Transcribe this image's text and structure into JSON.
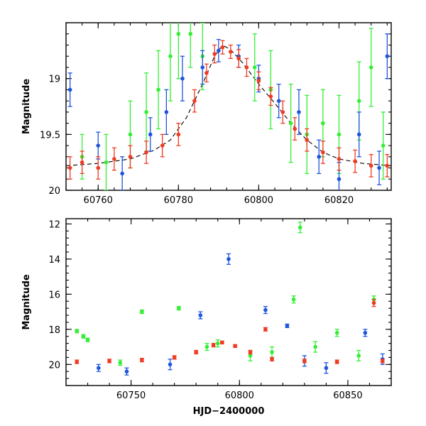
{
  "colors": {
    "green": "#33ee33",
    "blue": "#1f55dd",
    "red": "#f03a22",
    "model": "#000000"
  },
  "chart_data": [
    {
      "type": "scatter",
      "panel": "top",
      "xlabel": "",
      "ylabel": "Magnitude",
      "xlim": [
        60752,
        60833
      ],
      "ylim": [
        20.0,
        18.5
      ],
      "y_inverted": true,
      "x_ticks": [
        60760,
        60780,
        60800,
        60820
      ],
      "x_tick_labels": [
        "60760",
        "60780",
        "60800",
        "60820"
      ],
      "y_ticks": [
        19.0,
        19.5,
        20.0
      ],
      "y_tick_labels": [
        "19",
        "19.5",
        "20"
      ],
      "grid": false,
      "model_curve": {
        "x": [
          60752,
          60760,
          60768,
          60774,
          60778,
          60782,
          60786,
          60789,
          60791,
          60793,
          60796,
          60800,
          60804,
          60808,
          60812,
          60816,
          60820,
          60826,
          60833
        ],
        "y": [
          19.78,
          19.76,
          19.72,
          19.64,
          19.55,
          19.35,
          19.05,
          18.8,
          18.7,
          18.74,
          18.86,
          19.05,
          19.22,
          19.4,
          19.55,
          19.66,
          19.72,
          19.76,
          19.78
        ]
      },
      "series": [
        {
          "color": "green",
          "points": [
            [
              60756,
              19.7,
              0.2
            ],
            [
              60762,
              19.75,
              0.25
            ],
            [
              60768,
              19.5,
              0.3
            ],
            [
              60772,
              19.3,
              0.35
            ],
            [
              60775,
              19.1,
              0.35
            ],
            [
              60778,
              18.8,
              0.4
            ],
            [
              60780,
              18.6,
              0.4
            ],
            [
              60783,
              18.6,
              0.3
            ],
            [
              60786,
              18.8,
              0.3
            ],
            [
              60799,
              18.9,
              0.3
            ],
            [
              60803,
              19.1,
              0.35
            ],
            [
              60808,
              19.4,
              0.35
            ],
            [
              60812,
              19.5,
              0.35
            ],
            [
              60816,
              19.4,
              0.3
            ],
            [
              60820,
              19.5,
              0.35
            ],
            [
              60825,
              19.2,
              0.35
            ],
            [
              60828,
              18.9,
              0.35
            ],
            [
              60831,
              19.6,
              0.3
            ]
          ]
        },
        {
          "color": "blue",
          "points": [
            [
              60753,
              19.1,
              0.15
            ],
            [
              60760,
              19.6,
              0.12
            ],
            [
              60766,
              19.85,
              0.15
            ],
            [
              60773,
              19.5,
              0.15
            ],
            [
              60777,
              19.3,
              0.2
            ],
            [
              60781,
              19.0,
              0.2
            ],
            [
              60786,
              18.9,
              0.15
            ],
            [
              60790,
              18.75,
              0.1
            ],
            [
              60795,
              18.8,
              0.1
            ],
            [
              60800,
              19.0,
              0.12
            ],
            [
              60805,
              19.2,
              0.15
            ],
            [
              60810,
              19.3,
              0.2
            ],
            [
              60815,
              19.7,
              0.15
            ],
            [
              60820,
              19.9,
              0.15
            ],
            [
              60825,
              19.5,
              0.2
            ],
            [
              60830,
              19.8,
              0.15
            ],
            [
              60832,
              18.8,
              0.2
            ]
          ]
        },
        {
          "color": "red",
          "points": [
            [
              60753,
              19.8,
              0.1
            ],
            [
              60756,
              19.75,
              0.1
            ],
            [
              60760,
              19.8,
              0.1
            ],
            [
              60764,
              19.72,
              0.1
            ],
            [
              60768,
              19.7,
              0.1
            ],
            [
              60772,
              19.66,
              0.1
            ],
            [
              60776,
              19.6,
              0.1
            ],
            [
              60780,
              19.5,
              0.1
            ],
            [
              60784,
              19.2,
              0.1
            ],
            [
              60787,
              18.95,
              0.08
            ],
            [
              60789,
              18.78,
              0.08
            ],
            [
              60791,
              18.72,
              0.06
            ],
            [
              60793,
              18.76,
              0.06
            ],
            [
              60795,
              18.82,
              0.08
            ],
            [
              60797,
              18.9,
              0.08
            ],
            [
              60800,
              19.02,
              0.08
            ],
            [
              60803,
              19.16,
              0.08
            ],
            [
              60806,
              19.3,
              0.1
            ],
            [
              60809,
              19.45,
              0.1
            ],
            [
              60812,
              19.55,
              0.1
            ],
            [
              60816,
              19.66,
              0.1
            ],
            [
              60820,
              19.72,
              0.1
            ],
            [
              60824,
              19.74,
              0.1
            ],
            [
              60828,
              19.78,
              0.1
            ],
            [
              60832,
              19.78,
              0.1
            ]
          ]
        }
      ]
    },
    {
      "type": "scatter",
      "panel": "bottom",
      "xlabel": "HJD−2400000",
      "ylabel": "Magnitude",
      "xlim": [
        60720,
        60870
      ],
      "ylim": [
        21.2,
        11.7
      ],
      "y_inverted": true,
      "x_ticks": [
        60750,
        60800,
        60850
      ],
      "x_tick_labels": [
        "60750",
        "60800",
        "60850"
      ],
      "y_ticks": [
        12,
        14,
        16,
        18,
        20
      ],
      "y_tick_labels": [
        "12",
        "14",
        "16",
        "18",
        "20"
      ],
      "grid": false,
      "series": [
        {
          "color": "green",
          "points": [
            [
              60725,
              18.1,
              0.1
            ],
            [
              60728,
              18.4,
              0.1
            ],
            [
              60730,
              18.6,
              0.1
            ],
            [
              60745,
              19.9,
              0.15
            ],
            [
              60755,
              17.0,
              0.1
            ],
            [
              60772,
              16.8,
              0.1
            ],
            [
              60785,
              19.0,
              0.2
            ],
            [
              60790,
              18.8,
              0.2
            ],
            [
              60805,
              19.5,
              0.3
            ],
            [
              60815,
              19.3,
              0.3
            ],
            [
              60825,
              16.3,
              0.2
            ],
            [
              60828,
              12.2,
              0.3
            ],
            [
              60835,
              19.0,
              0.3
            ],
            [
              60845,
              18.2,
              0.2
            ],
            [
              60855,
              19.5,
              0.3
            ],
            [
              60862,
              16.3,
              0.2
            ]
          ]
        },
        {
          "color": "blue",
          "points": [
            [
              60735,
              20.2,
              0.2
            ],
            [
              60748,
              20.4,
              0.2
            ],
            [
              60768,
              20.0,
              0.3
            ],
            [
              60782,
              17.2,
              0.2
            ],
            [
              60795,
              14.0,
              0.3
            ],
            [
              60812,
              16.9,
              0.2
            ],
            [
              60822,
              17.8,
              0.1
            ],
            [
              60830,
              19.8,
              0.3
            ],
            [
              60840,
              20.2,
              0.3
            ],
            [
              60858,
              18.2,
              0.2
            ],
            [
              60866,
              19.7,
              0.3
            ]
          ]
        },
        {
          "color": "red",
          "points": [
            [
              60725,
              19.85,
              0.1
            ],
            [
              60740,
              19.8,
              0.1
            ],
            [
              60755,
              19.75,
              0.1
            ],
            [
              60770,
              19.6,
              0.1
            ],
            [
              60780,
              19.3,
              0.1
            ],
            [
              60788,
              18.9,
              0.1
            ],
            [
              60792,
              18.75,
              0.08
            ],
            [
              60798,
              18.95,
              0.08
            ],
            [
              60805,
              19.3,
              0.1
            ],
            [
              60812,
              18.0,
              0.1
            ],
            [
              60815,
              19.7,
              0.1
            ],
            [
              60830,
              19.8,
              0.1
            ],
            [
              60845,
              19.85,
              0.1
            ],
            [
              60862,
              16.5,
              0.2
            ],
            [
              60866,
              19.8,
              0.1
            ]
          ]
        }
      ]
    }
  ]
}
